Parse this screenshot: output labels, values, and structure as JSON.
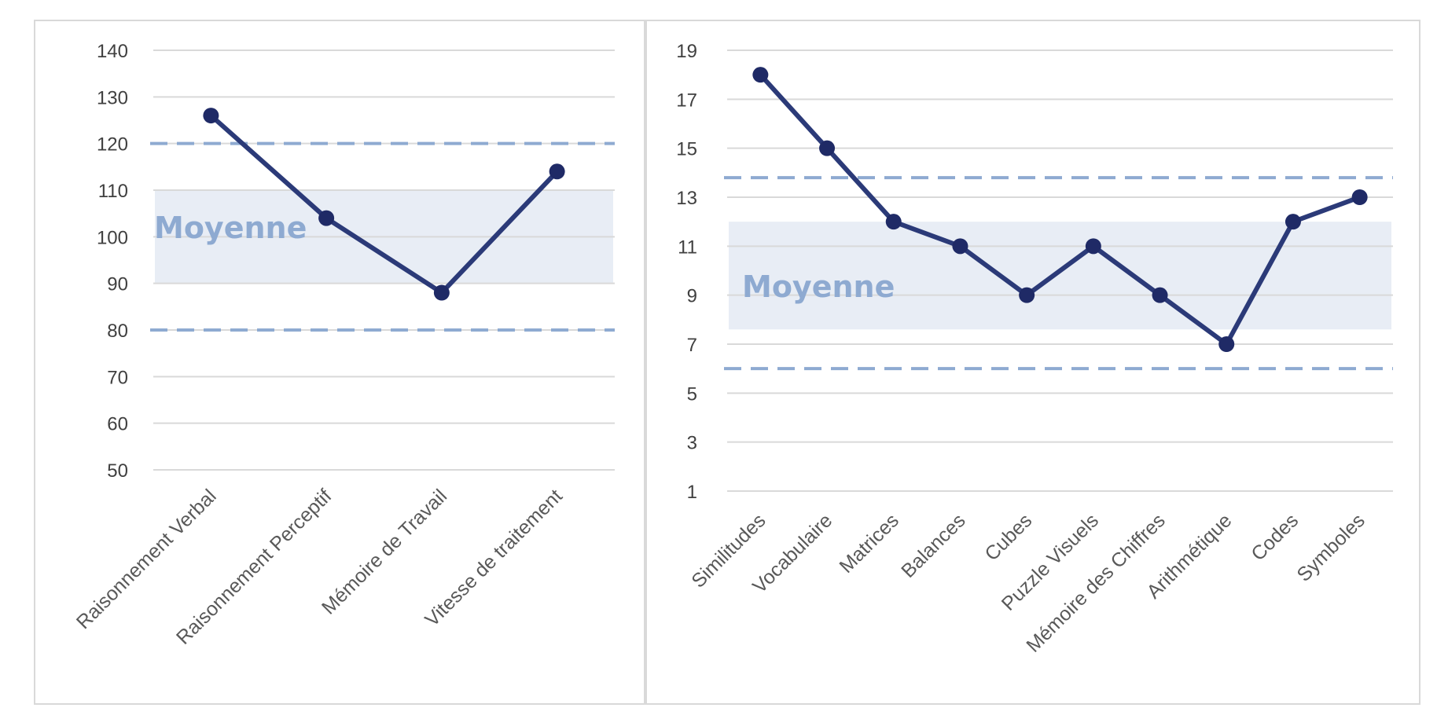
{
  "chart_data": [
    {
      "type": "line",
      "categories": [
        "Raisonnement Verbal",
        "Raisonnement Perceptif",
        "Mémoire de Travail",
        "Vitesse de traitement"
      ],
      "values": [
        126,
        104,
        88,
        114
      ],
      "ylim": [
        50,
        140
      ],
      "yticks": [
        140,
        130,
        120,
        110,
        100,
        90,
        80,
        70,
        60,
        50
      ],
      "band": {
        "label": "Moyenne",
        "from": 90,
        "to": 110
      },
      "reference_lines": [
        120,
        80
      ],
      "grid": true,
      "legend": "none"
    },
    {
      "type": "line",
      "categories": [
        "Similitudes",
        "Vocabulaire",
        "Matrices",
        "Balances",
        "Cubes",
        "Puzzle Visuels",
        "Mémoire des Chiffres",
        "Arithmétique",
        "Codes",
        "Symboles"
      ],
      "values": [
        18,
        15,
        12,
        11,
        9,
        11,
        9,
        7,
        12,
        13
      ],
      "ylim": [
        1,
        19
      ],
      "yticks": [
        19,
        17,
        15,
        13,
        11,
        9,
        7,
        5,
        3,
        1
      ],
      "band": {
        "label": "Moyenne",
        "from": 7.6,
        "to": 12
      },
      "reference_lines": [
        13.8,
        6
      ],
      "grid": true,
      "legend": "none"
    }
  ],
  "colors": {
    "line": "#2b3a78",
    "marker": "#1f2a66",
    "band": "#e8edf5",
    "reference": "#8eaad1",
    "grid": "#d9d9d9"
  }
}
